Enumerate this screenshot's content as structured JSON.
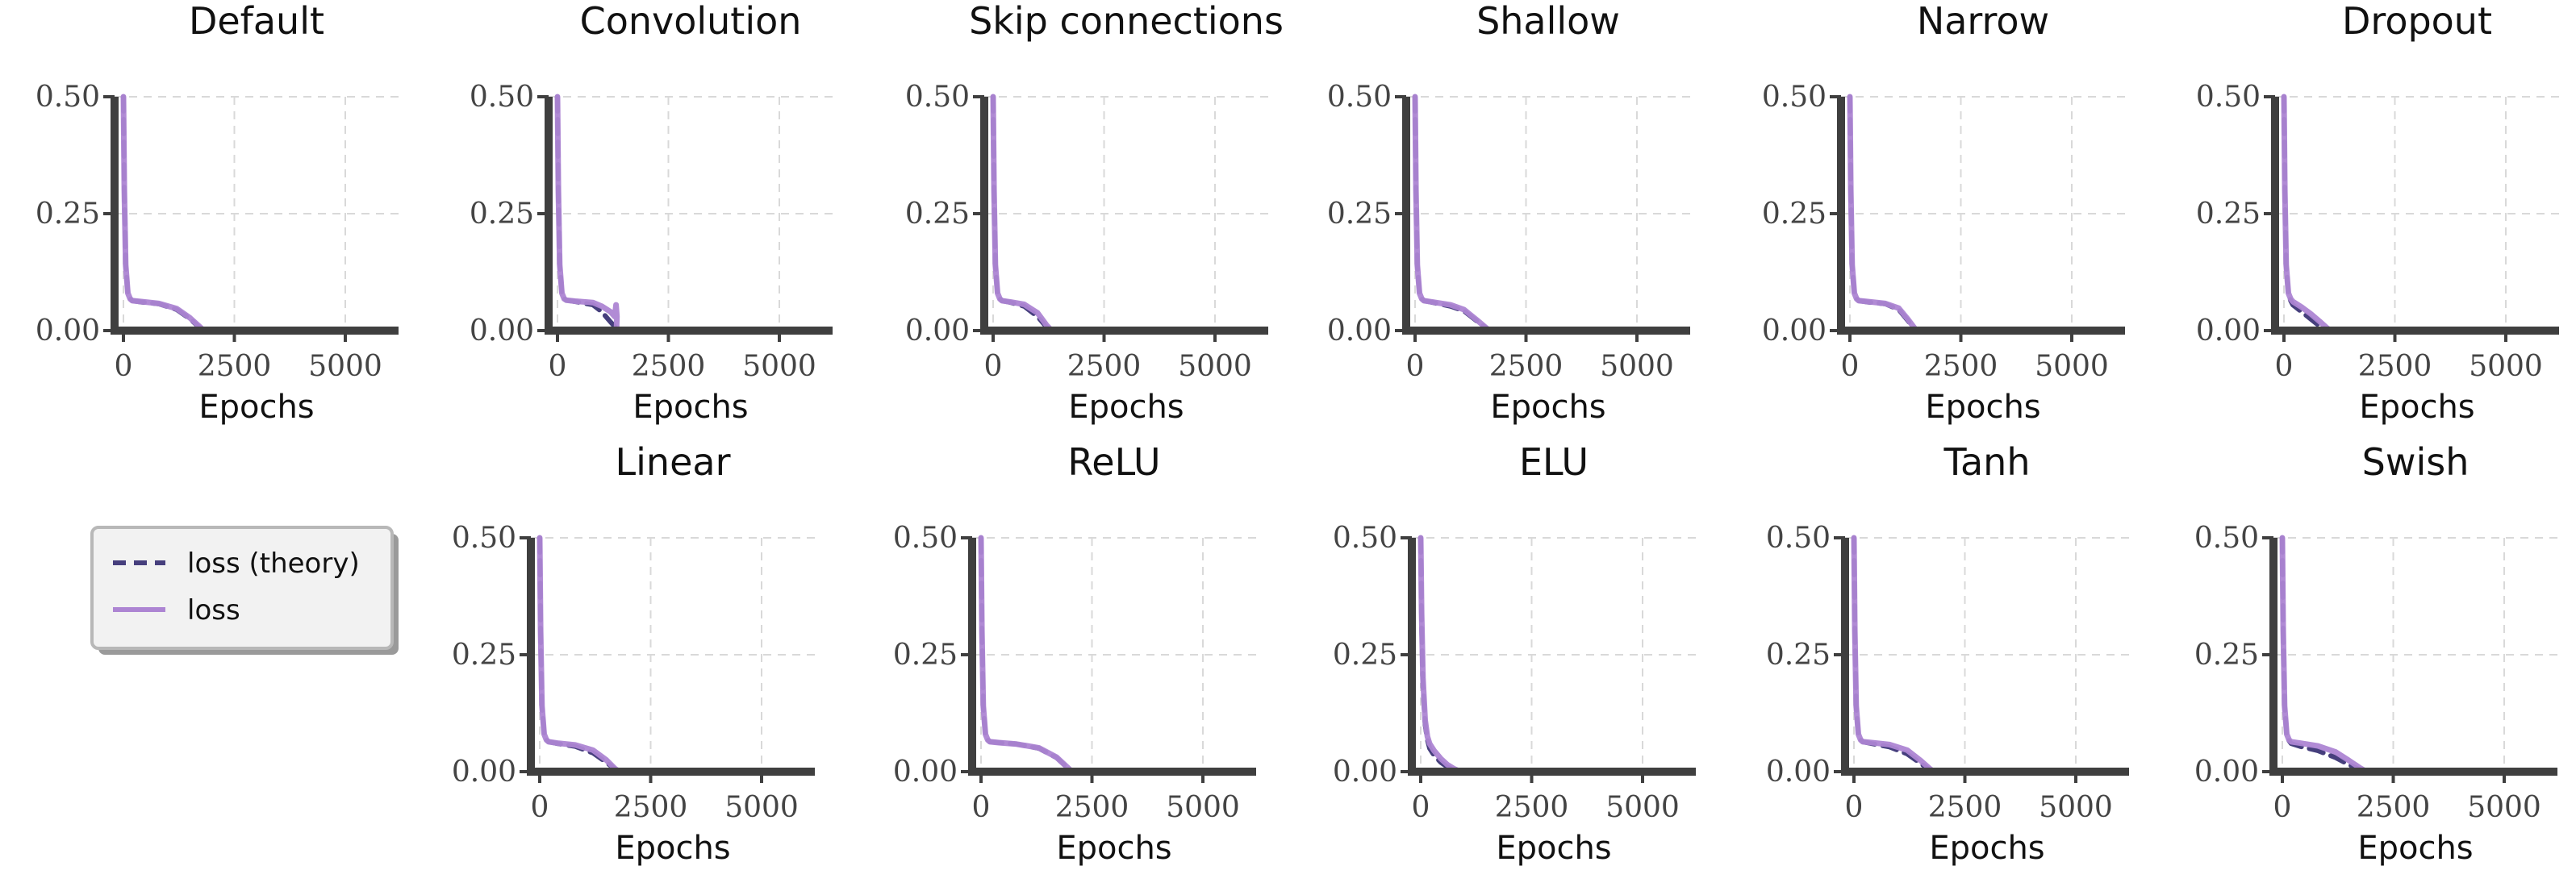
{
  "colors": {
    "theory": "#463f7d",
    "loss": "#ad85d3",
    "axis": "#3f3f3f",
    "grid": "#d9d9d9"
  },
  "legend": {
    "items": [
      {
        "label": "loss (theory)",
        "style": "dashed",
        "color": "#463f7d"
      },
      {
        "label": "loss",
        "style": "solid",
        "color": "#ad85d3"
      }
    ]
  },
  "chart_data": [
    {
      "type": "line",
      "title": "Default",
      "xlabel": "Epochs",
      "xlim": [
        -200,
        6200
      ],
      "ylim": [
        0,
        0.5
      ],
      "xticks": [
        "0",
        "2500",
        "5000"
      ],
      "yticks": [
        "0.00",
        "0.25",
        "0.50"
      ],
      "grid": true,
      "series": [
        {
          "name": "loss (theory)",
          "x": [
            0,
            20,
            50,
            100,
            150,
            200,
            400,
            800,
            1200,
            1500,
            1700,
            1800,
            1850
          ],
          "y": [
            0.5,
            0.3,
            0.14,
            0.08,
            0.068,
            0.064,
            0.061,
            0.057,
            0.045,
            0.025,
            0.008,
            0.002,
            0
          ]
        },
        {
          "name": "loss",
          "x": [
            0,
            20,
            50,
            100,
            150,
            200,
            400,
            800,
            1200,
            1500,
            1700,
            1780,
            1820
          ],
          "y": [
            0.5,
            0.3,
            0.14,
            0.08,
            0.068,
            0.064,
            0.062,
            0.058,
            0.047,
            0.027,
            0.01,
            0.003,
            0
          ]
        }
      ]
    },
    {
      "type": "line",
      "title": "Convolution",
      "xlabel": "Epochs",
      "xlim": [
        -200,
        6200
      ],
      "ylim": [
        0,
        0.5
      ],
      "xticks": [
        "0",
        "2500",
        "5000"
      ],
      "yticks": [
        "0.00",
        "0.25",
        "0.50"
      ],
      "grid": true,
      "series": [
        {
          "name": "loss (theory)",
          "x": [
            0,
            20,
            50,
            100,
            150,
            200,
            400,
            800,
            1000,
            1200,
            1300
          ],
          "y": [
            0.5,
            0.3,
            0.14,
            0.08,
            0.068,
            0.065,
            0.062,
            0.055,
            0.04,
            0.018,
            0.008
          ]
        },
        {
          "name": "loss",
          "x": [
            0,
            20,
            50,
            100,
            150,
            200,
            400,
            800,
            1000,
            1200,
            1290,
            1320,
            1340,
            1330
          ],
          "y": [
            0.5,
            0.3,
            0.14,
            0.08,
            0.068,
            0.065,
            0.063,
            0.06,
            0.052,
            0.04,
            0.03,
            0.055,
            0.03,
            0.0
          ]
        }
      ]
    },
    {
      "type": "line",
      "title": "Skip connections",
      "xlabel": "Epochs",
      "xlim": [
        -200,
        6200
      ],
      "ylim": [
        0,
        0.5
      ],
      "xticks": [
        "0",
        "2500",
        "5000"
      ],
      "yticks": [
        "0.00",
        "0.25",
        "0.50"
      ],
      "grid": true,
      "series": [
        {
          "name": "loss (theory)",
          "x": [
            0,
            20,
            50,
            100,
            150,
            200,
            400,
            700,
            1000,
            1200,
            1300
          ],
          "y": [
            0.5,
            0.3,
            0.14,
            0.08,
            0.068,
            0.064,
            0.06,
            0.052,
            0.03,
            0.008,
            0
          ]
        },
        {
          "name": "loss",
          "x": [
            0,
            20,
            50,
            100,
            150,
            200,
            400,
            700,
            1000,
            1200,
            1320
          ],
          "y": [
            0.5,
            0.3,
            0.14,
            0.08,
            0.068,
            0.064,
            0.061,
            0.056,
            0.038,
            0.012,
            0
          ]
        }
      ]
    },
    {
      "type": "line",
      "title": "Shallow",
      "xlabel": "Epochs",
      "xlim": [
        -200,
        6200
      ],
      "ylim": [
        0,
        0.5
      ],
      "xticks": [
        "0",
        "2500",
        "5000"
      ],
      "yticks": [
        "0.00",
        "0.25",
        "0.50"
      ],
      "grid": true,
      "series": [
        {
          "name": "loss (theory)",
          "x": [
            0,
            20,
            50,
            100,
            150,
            200,
            400,
            800,
            1100,
            1400,
            1600,
            1700
          ],
          "y": [
            0.5,
            0.3,
            0.14,
            0.08,
            0.068,
            0.064,
            0.06,
            0.052,
            0.042,
            0.02,
            0.005,
            0
          ]
        },
        {
          "name": "loss",
          "x": [
            0,
            20,
            50,
            100,
            150,
            200,
            400,
            800,
            1100,
            1400,
            1600,
            1680
          ],
          "y": [
            0.5,
            0.3,
            0.14,
            0.08,
            0.068,
            0.064,
            0.061,
            0.055,
            0.045,
            0.022,
            0.006,
            0
          ]
        }
      ]
    },
    {
      "type": "line",
      "title": "Narrow",
      "xlabel": "Epochs",
      "xlim": [
        -200,
        6200
      ],
      "ylim": [
        0,
        0.5
      ],
      "xticks": [
        "0",
        "2500",
        "5000"
      ],
      "yticks": [
        "0.00",
        "0.25",
        "0.50"
      ],
      "grid": true,
      "series": [
        {
          "name": "loss (theory)",
          "x": [
            0,
            20,
            50,
            100,
            150,
            200,
            400,
            800,
            1100,
            1300,
            1450,
            1500
          ],
          "y": [
            0.5,
            0.3,
            0.14,
            0.08,
            0.068,
            0.064,
            0.061,
            0.057,
            0.045,
            0.022,
            0.004,
            0
          ]
        },
        {
          "name": "loss",
          "x": [
            0,
            20,
            50,
            100,
            150,
            200,
            400,
            800,
            1100,
            1300,
            1450,
            1500
          ],
          "y": [
            0.5,
            0.3,
            0.14,
            0.08,
            0.068,
            0.064,
            0.062,
            0.058,
            0.048,
            0.025,
            0.006,
            0
          ]
        }
      ]
    },
    {
      "type": "line",
      "title": "Dropout",
      "xlabel": "Epochs",
      "xlim": [
        -200,
        6200
      ],
      "ylim": [
        0,
        0.5
      ],
      "xticks": [
        "0",
        "2500",
        "5000"
      ],
      "yticks": [
        "0.00",
        "0.25",
        "0.50"
      ],
      "grid": true,
      "series": [
        {
          "name": "loss (theory)",
          "x": [
            0,
            20,
            50,
            100,
            150,
            200,
            400,
            600,
            800,
            950,
            1000
          ],
          "y": [
            0.5,
            0.3,
            0.14,
            0.08,
            0.064,
            0.055,
            0.04,
            0.025,
            0.01,
            0.002,
            0
          ]
        },
        {
          "name": "loss",
          "x": [
            0,
            20,
            50,
            100,
            150,
            200,
            400,
            600,
            800,
            950,
            1050
          ],
          "y": [
            0.5,
            0.3,
            0.14,
            0.08,
            0.068,
            0.062,
            0.05,
            0.036,
            0.02,
            0.007,
            0
          ]
        }
      ]
    },
    {
      "type": "line",
      "title": "Linear",
      "xlabel": "Epochs",
      "xlim": [
        -200,
        6200
      ],
      "ylim": [
        0,
        0.5
      ],
      "xticks": [
        "0",
        "2500",
        "5000"
      ],
      "yticks": [
        "0.00",
        "0.25",
        "0.50"
      ],
      "grid": true,
      "series": [
        {
          "name": "loss (theory)",
          "x": [
            0,
            20,
            50,
            100,
            150,
            200,
            400,
            800,
            1200,
            1500,
            1700,
            1800
          ],
          "y": [
            0.5,
            0.3,
            0.14,
            0.08,
            0.068,
            0.064,
            0.06,
            0.054,
            0.04,
            0.02,
            0.005,
            0
          ]
        },
        {
          "name": "loss",
          "x": [
            0,
            20,
            50,
            100,
            150,
            200,
            400,
            800,
            1200,
            1500,
            1700,
            1800
          ],
          "y": [
            0.5,
            0.3,
            0.14,
            0.08,
            0.068,
            0.064,
            0.061,
            0.057,
            0.046,
            0.025,
            0.006,
            0
          ]
        }
      ]
    },
    {
      "type": "line",
      "title": "ReLU",
      "xlabel": "Epochs",
      "xlim": [
        -200,
        6200
      ],
      "ylim": [
        0,
        0.5
      ],
      "xticks": [
        "0",
        "2500",
        "5000"
      ],
      "yticks": [
        "0.00",
        "0.25",
        "0.50"
      ],
      "grid": true,
      "series": [
        {
          "name": "loss (theory)",
          "x": [
            0,
            20,
            50,
            100,
            150,
            200,
            400,
            800,
            1300,
            1700,
            1950,
            2050
          ],
          "y": [
            0.5,
            0.3,
            0.14,
            0.08,
            0.068,
            0.064,
            0.062,
            0.059,
            0.05,
            0.03,
            0.008,
            0
          ]
        },
        {
          "name": "loss",
          "x": [
            0,
            20,
            50,
            100,
            150,
            200,
            400,
            800,
            1300,
            1700,
            1950,
            2050
          ],
          "y": [
            0.5,
            0.3,
            0.14,
            0.08,
            0.068,
            0.064,
            0.062,
            0.059,
            0.051,
            0.031,
            0.009,
            0
          ]
        }
      ]
    },
    {
      "type": "line",
      "title": "ELU",
      "xlabel": "Epochs",
      "xlim": [
        -200,
        6200
      ],
      "ylim": [
        0,
        0.5
      ],
      "xticks": [
        "0",
        "2500",
        "5000"
      ],
      "yticks": [
        "0.00",
        "0.25",
        "0.50"
      ],
      "grid": true,
      "series": [
        {
          "name": "loss (theory)",
          "x": [
            0,
            20,
            50,
            100,
            150,
            200,
            300,
            450,
            600,
            750,
            850,
            900
          ],
          "y": [
            0.5,
            0.32,
            0.18,
            0.1,
            0.068,
            0.05,
            0.035,
            0.02,
            0.01,
            0.004,
            0.001,
            0
          ]
        },
        {
          "name": "loss",
          "x": [
            0,
            20,
            50,
            100,
            150,
            200,
            300,
            450,
            600,
            750,
            850,
            950
          ],
          "y": [
            0.5,
            0.34,
            0.2,
            0.11,
            0.075,
            0.06,
            0.045,
            0.028,
            0.015,
            0.006,
            0.002,
            0
          ]
        }
      ]
    },
    {
      "type": "line",
      "title": "Tanh",
      "xlabel": "Epochs",
      "xlim": [
        -200,
        6200
      ],
      "ylim": [
        0,
        0.5
      ],
      "xticks": [
        "0",
        "2500",
        "5000"
      ],
      "yticks": [
        "0.00",
        "0.25",
        "0.50"
      ],
      "grid": true,
      "series": [
        {
          "name": "loss (theory)",
          "x": [
            0,
            20,
            50,
            100,
            150,
            200,
            400,
            800,
            1200,
            1500,
            1700,
            1800
          ],
          "y": [
            0.5,
            0.3,
            0.14,
            0.08,
            0.068,
            0.064,
            0.06,
            0.053,
            0.038,
            0.018,
            0.004,
            0
          ]
        },
        {
          "name": "loss",
          "x": [
            0,
            20,
            50,
            100,
            150,
            200,
            400,
            800,
            1200,
            1500,
            1700,
            1800
          ],
          "y": [
            0.5,
            0.3,
            0.14,
            0.08,
            0.068,
            0.064,
            0.062,
            0.058,
            0.046,
            0.024,
            0.007,
            0
          ]
        }
      ]
    },
    {
      "type": "line",
      "title": "Swish",
      "xlabel": "Epochs",
      "xlim": [
        -200,
        6200
      ],
      "ylim": [
        0,
        0.5
      ],
      "xticks": [
        "0",
        "2500",
        "5000"
      ],
      "yticks": [
        "0.00",
        "0.25",
        "0.50"
      ],
      "grid": true,
      "series": [
        {
          "name": "loss (theory)",
          "x": [
            0,
            20,
            50,
            100,
            150,
            200,
            400,
            800,
            1200,
            1500,
            1750,
            1850
          ],
          "y": [
            0.5,
            0.3,
            0.14,
            0.08,
            0.066,
            0.06,
            0.054,
            0.045,
            0.03,
            0.015,
            0.004,
            0
          ]
        },
        {
          "name": "loss",
          "x": [
            0,
            20,
            50,
            100,
            150,
            200,
            400,
            800,
            1200,
            1500,
            1750,
            1900
          ],
          "y": [
            0.5,
            0.3,
            0.14,
            0.08,
            0.068,
            0.064,
            0.061,
            0.055,
            0.042,
            0.024,
            0.008,
            0
          ]
        }
      ]
    }
  ]
}
